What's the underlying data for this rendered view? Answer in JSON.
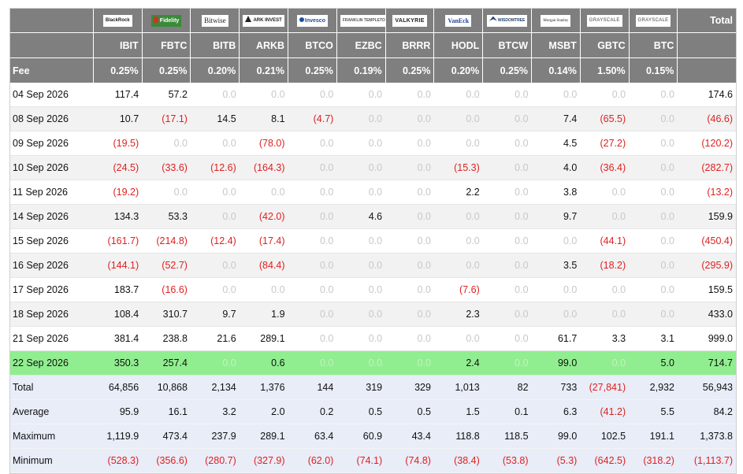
{
  "header": {
    "total_label": "Total",
    "fee_label": "Fee",
    "funds": [
      {
        "ticker": "IBIT",
        "fee": "0.25%",
        "logo_text": "BlackRock",
        "logo_icon": "blackrock-logo-icon"
      },
      {
        "ticker": "FBTC",
        "fee": "0.25%",
        "logo_text": "Fidelity",
        "logo_icon": "fidelity-logo-icon"
      },
      {
        "ticker": "BITB",
        "fee": "0.20%",
        "logo_text": "Bitwise",
        "logo_icon": "bitwise-logo-icon"
      },
      {
        "ticker": "ARKB",
        "fee": "0.21%",
        "logo_text": "ARK INVEST",
        "logo_icon": "ark-logo-icon"
      },
      {
        "ticker": "BTCO",
        "fee": "0.25%",
        "logo_text": "Invesco",
        "logo_icon": "invesco-logo-icon"
      },
      {
        "ticker": "EZBC",
        "fee": "0.19%",
        "logo_text": "FRANKLIN TEMPLETON",
        "logo_icon": "franklin-logo-icon"
      },
      {
        "ticker": "BRRR",
        "fee": "0.25%",
        "logo_text": "VALKYRIE",
        "logo_icon": "valkyrie-logo-icon"
      },
      {
        "ticker": "HODL",
        "fee": "0.20%",
        "logo_text": "VanEck",
        "logo_icon": "vaneck-logo-icon"
      },
      {
        "ticker": "BTCW",
        "fee": "0.25%",
        "logo_text": "WISDOMTREE",
        "logo_icon": "wisdomtree-logo-icon"
      },
      {
        "ticker": "MSBT",
        "fee": "0.14%",
        "logo_text": "Morgan Stanley",
        "logo_icon": "morgan-stanley-logo-icon"
      },
      {
        "ticker": "GBTC",
        "fee": "1.50%",
        "logo_text": "GRAYSCALE",
        "logo_icon": "grayscale-logo-icon"
      },
      {
        "ticker": "BTC",
        "fee": "0.15%",
        "logo_text": "GRAYSCALE",
        "logo_icon": "grayscale-logo-icon"
      }
    ]
  },
  "rows": [
    {
      "date": "04 Sep 2026",
      "values": [
        "117.4",
        "57.2",
        "0.0",
        "0.0",
        "0.0",
        "0.0",
        "0.0",
        "0.0",
        "0.0",
        "0.0",
        "0.0",
        "0.0"
      ],
      "total": "174.6",
      "highlight": false
    },
    {
      "date": "08 Sep 2026",
      "values": [
        "10.7",
        "(17.1)",
        "14.5",
        "8.1",
        "(4.7)",
        "0.0",
        "0.0",
        "0.0",
        "0.0",
        "7.4",
        "(65.5)",
        "0.0"
      ],
      "total": "(46.6)",
      "highlight": false
    },
    {
      "date": "09 Sep 2026",
      "values": [
        "(19.5)",
        "0.0",
        "0.0",
        "(78.0)",
        "0.0",
        "0.0",
        "0.0",
        "0.0",
        "0.0",
        "4.5",
        "(27.2)",
        "0.0"
      ],
      "total": "(120.2)",
      "highlight": false
    },
    {
      "date": "10 Sep 2026",
      "values": [
        "(24.5)",
        "(33.6)",
        "(12.6)",
        "(164.3)",
        "0.0",
        "0.0",
        "0.0",
        "(15.3)",
        "0.0",
        "4.0",
        "(36.4)",
        "0.0"
      ],
      "total": "(282.7)",
      "highlight": false
    },
    {
      "date": "11 Sep 2026",
      "values": [
        "(19.2)",
        "0.0",
        "0.0",
        "0.0",
        "0.0",
        "0.0",
        "0.0",
        "2.2",
        "0.0",
        "3.8",
        "0.0",
        "0.0"
      ],
      "total": "(13.2)",
      "highlight": false
    },
    {
      "date": "14 Sep 2026",
      "values": [
        "134.3",
        "53.3",
        "0.0",
        "(42.0)",
        "0.0",
        "4.6",
        "0.0",
        "0.0",
        "0.0",
        "9.7",
        "0.0",
        "0.0"
      ],
      "total": "159.9",
      "highlight": false
    },
    {
      "date": "15 Sep 2026",
      "values": [
        "(161.7)",
        "(214.8)",
        "(12.4)",
        "(17.4)",
        "0.0",
        "0.0",
        "0.0",
        "0.0",
        "0.0",
        "0.0",
        "(44.1)",
        "0.0"
      ],
      "total": "(450.4)",
      "highlight": false
    },
    {
      "date": "16 Sep 2026",
      "values": [
        "(144.1)",
        "(52.7)",
        "0.0",
        "(84.4)",
        "0.0",
        "0.0",
        "0.0",
        "0.0",
        "0.0",
        "3.5",
        "(18.2)",
        "0.0"
      ],
      "total": "(295.9)",
      "highlight": false
    },
    {
      "date": "17 Sep 2026",
      "values": [
        "183.7",
        "(16.6)",
        "0.0",
        "0.0",
        "0.0",
        "0.0",
        "0.0",
        "(7.6)",
        "0.0",
        "0.0",
        "0.0",
        "0.0"
      ],
      "total": "159.5",
      "highlight": false
    },
    {
      "date": "18 Sep 2026",
      "values": [
        "108.4",
        "310.7",
        "9.7",
        "1.9",
        "0.0",
        "0.0",
        "0.0",
        "2.3",
        "0.0",
        "0.0",
        "0.0",
        "0.0"
      ],
      "total": "433.0",
      "highlight": false
    },
    {
      "date": "21 Sep 2026",
      "values": [
        "381.4",
        "238.8",
        "21.6",
        "289.1",
        "0.0",
        "0.0",
        "0.0",
        "0.0",
        "0.0",
        "61.7",
        "3.3",
        "3.1"
      ],
      "total": "999.0",
      "highlight": false
    },
    {
      "date": "22 Sep 2026",
      "values": [
        "350.3",
        "257.4",
        "0.0",
        "0.6",
        "0.0",
        "0.0",
        "0.0",
        "2.4",
        "0.0",
        "99.0",
        "0.0",
        "5.0"
      ],
      "total": "714.7",
      "highlight": true
    }
  ],
  "summary": [
    {
      "label": "Total",
      "values": [
        "64,856",
        "10,868",
        "2,134",
        "1,376",
        "144",
        "319",
        "329",
        "1,013",
        "82",
        "733",
        "(27,841)",
        "2,932"
      ],
      "total": "56,943"
    },
    {
      "label": "Average",
      "values": [
        "95.9",
        "16.1",
        "3.2",
        "2.0",
        "0.2",
        "0.5",
        "0.5",
        "1.5",
        "0.1",
        "6.3",
        "(41.2)",
        "5.5"
      ],
      "total": "84.2"
    },
    {
      "label": "Maximum",
      "values": [
        "1,119.9",
        "473.4",
        "237.9",
        "289.1",
        "63.4",
        "60.9",
        "43.4",
        "118.8",
        "118.5",
        "99.0",
        "102.5",
        "191.1"
      ],
      "total": "1,373.8"
    },
    {
      "label": "Minimum",
      "values": [
        "(528.3)",
        "(356.6)",
        "(280.7)",
        "(327.9)",
        "(62.0)",
        "(74.1)",
        "(74.8)",
        "(38.4)",
        "(53.8)",
        "(5.3)",
        "(642.5)",
        "(318.2)"
      ],
      "total": "(1,113.7)"
    }
  ],
  "colors": {
    "header_bg": "#7f7f7f",
    "negative": "#e02020",
    "zero": "#c8c8c8",
    "highlight_row": "#90ee90",
    "summary_bg": "#e8edf8",
    "alt_row": "#f2f2f2"
  }
}
